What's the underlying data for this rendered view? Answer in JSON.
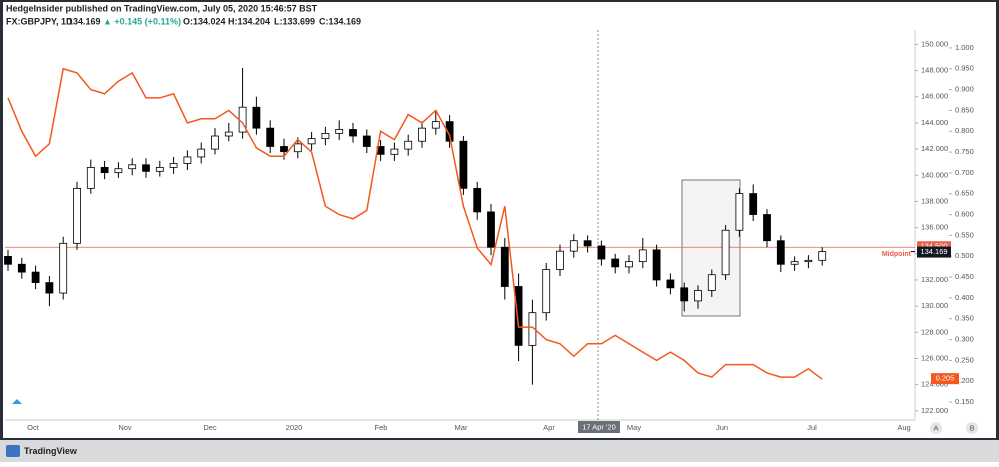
{
  "header": {
    "publisher": "HedgeInsider published on TradingView.com, July 05, 2020 15:46:57 BST",
    "symbol": "FX:GBPJPY, 1D",
    "price": "134.169",
    "change": "▲ +0.145 (+0.11%)",
    "open": "O:134.024",
    "high": "H:134.204",
    "low": "L:133.699",
    "close": "C:134.169"
  },
  "footer": {
    "brand": "TradingView",
    "crosshair_date": "17 Apr '20",
    "scale_buttons": [
      "A",
      "B"
    ]
  },
  "chart_data": {
    "type": "candlestick",
    "x_labels": [
      "Oct",
      "Nov",
      "Dec",
      "2020",
      "Feb",
      "Mar",
      "Apr",
      "May",
      "Jun",
      "Jul",
      "Aug"
    ],
    "open": [
      133.8,
      133.2,
      132.6,
      131.8,
      131.0,
      134.8,
      139.0,
      140.6,
      140.2,
      140.5,
      140.8,
      140.3,
      140.6,
      140.9,
      141.4,
      142.0,
      143.0,
      143.3,
      145.2,
      143.6,
      142.2,
      141.8,
      142.4,
      142.8,
      143.2,
      143.5,
      143.0,
      142.2,
      141.6,
      142.0,
      142.6,
      143.6,
      144.1,
      142.6,
      139.0,
      137.2,
      134.5,
      131.5,
      127.0,
      129.5,
      132.8,
      134.2,
      135.0,
      134.6,
      133.6,
      133.0,
      133.4,
      134.3,
      132.0,
      131.4,
      130.4,
      131.2,
      132.4,
      135.8,
      138.6,
      137.0,
      135.0,
      133.2,
      133.4,
      133.5
    ],
    "high": [
      134.3,
      133.7,
      133.1,
      132.3,
      135.3,
      139.5,
      141.2,
      141.1,
      141.0,
      141.3,
      141.3,
      141.1,
      141.4,
      141.9,
      142.5,
      143.6,
      144.0,
      148.2,
      146.0,
      144.2,
      142.8,
      142.9,
      143.3,
      143.7,
      144.2,
      144.0,
      143.5,
      142.7,
      142.5,
      143.1,
      144.1,
      144.9,
      144.6,
      143.0,
      139.5,
      137.8,
      135.2,
      132.5,
      130.5,
      133.3,
      134.7,
      135.5,
      135.4,
      135.0,
      134.0,
      133.9,
      135.2,
      134.7,
      132.5,
      131.8,
      131.6,
      132.8,
      136.2,
      139.0,
      139.3,
      137.4,
      135.4,
      133.8,
      133.9,
      134.5
    ],
    "low": [
      132.7,
      132.1,
      131.3,
      130.0,
      130.5,
      134.3,
      138.6,
      139.7,
      139.8,
      140.0,
      139.8,
      139.9,
      140.1,
      140.4,
      140.9,
      141.6,
      142.6,
      142.8,
      143.1,
      141.7,
      141.2,
      141.3,
      141.9,
      142.3,
      142.7,
      142.5,
      141.7,
      141.1,
      141.1,
      141.5,
      142.1,
      143.1,
      142.1,
      138.5,
      136.6,
      133.9,
      130.5,
      125.8,
      124.0,
      128.9,
      132.3,
      133.7,
      134.1,
      133.1,
      132.5,
      132.5,
      132.9,
      131.5,
      130.9,
      129.6,
      129.8,
      130.7,
      132.0,
      135.3,
      136.5,
      134.5,
      132.6,
      132.7,
      132.9,
      133.1
    ],
    "close": [
      133.2,
      132.6,
      131.8,
      131.0,
      134.8,
      139.0,
      140.6,
      140.2,
      140.5,
      140.8,
      140.3,
      140.6,
      140.9,
      141.4,
      142.0,
      143.0,
      143.3,
      145.2,
      143.6,
      142.2,
      141.8,
      142.4,
      142.8,
      143.2,
      143.5,
      143.0,
      142.2,
      141.6,
      142.0,
      142.6,
      143.6,
      144.1,
      142.6,
      139.0,
      137.2,
      134.5,
      131.5,
      127.0,
      129.5,
      132.8,
      134.2,
      135.0,
      134.6,
      133.6,
      133.0,
      133.4,
      134.3,
      132.0,
      131.4,
      130.4,
      131.2,
      132.4,
      135.8,
      138.6,
      137.0,
      135.0,
      133.2,
      133.4,
      133.5,
      134.17
    ],
    "line": {
      "color": "#f4581d",
      "axis": "y2",
      "values": [
        0.88,
        0.8,
        0.74,
        0.77,
        0.95,
        0.94,
        0.9,
        0.89,
        0.92,
        0.94,
        0.88,
        0.88,
        0.89,
        0.82,
        0.83,
        0.83,
        0.85,
        0.82,
        0.76,
        0.74,
        0.74,
        0.78,
        0.75,
        0.62,
        0.6,
        0.59,
        0.61,
        0.8,
        0.78,
        0.84,
        0.82,
        0.85,
        0.79,
        0.62,
        0.52,
        0.48,
        0.62,
        0.33,
        0.33,
        0.3,
        0.29,
        0.26,
        0.29,
        0.29,
        0.31,
        0.29,
        0.27,
        0.25,
        0.27,
        0.25,
        0.22,
        0.21,
        0.24,
        0.24,
        0.24,
        0.22,
        0.21,
        0.21,
        0.23,
        0.205
      ],
      "last_label": "0.205"
    },
    "midpoint": {
      "name": "Midpoint",
      "value": 134.5,
      "label": "134.500",
      "color": "#e8614a"
    },
    "last_price": {
      "value": 134.169,
      "label": "134.169"
    },
    "ylim": [
      121.3,
      151.1
    ],
    "yticks": [
      {
        "value": 150,
        "label": "150.000"
      },
      {
        "value": 148,
        "label": "148.000"
      },
      {
        "value": 146,
        "label": "146.000"
      },
      {
        "value": 144,
        "label": "144.000"
      },
      {
        "value": 142,
        "label": "142.000"
      },
      {
        "value": 140,
        "label": "140.000"
      },
      {
        "value": 138,
        "label": "138.000"
      },
      {
        "value": 136,
        "label": "136.000"
      },
      {
        "value": 134,
        "label": "134.000"
      },
      {
        "value": 132,
        "label": "132.000"
      },
      {
        "value": 130,
        "label": "130.000"
      },
      {
        "value": 128,
        "label": "128.000"
      },
      {
        "value": 126,
        "label": "126.000"
      },
      {
        "value": 124,
        "label": "124.000"
      },
      {
        "value": 122,
        "label": "122.000"
      }
    ],
    "y2lim": [
      0.107,
      1.043
    ],
    "y2ticks": [
      {
        "value": 1,
        "label": "1.000"
      },
      {
        "value": 0.95,
        "label": "0.950"
      },
      {
        "value": 0.9,
        "label": "0.900"
      },
      {
        "value": 0.85,
        "label": "0.850"
      },
      {
        "value": 0.8,
        "label": "0.800"
      },
      {
        "value": 0.75,
        "label": "0.750"
      },
      {
        "value": 0.7,
        "label": "0.700"
      },
      {
        "value": 0.65,
        "label": "0.650"
      },
      {
        "value": 0.6,
        "label": "0.600"
      },
      {
        "value": 0.55,
        "label": "0.550"
      },
      {
        "value": 0.5,
        "label": "0.500"
      },
      {
        "value": 0.45,
        "label": "0.450"
      },
      {
        "value": 0.4,
        "label": "0.400"
      },
      {
        "value": 0.35,
        "label": "0.350"
      },
      {
        "value": 0.3,
        "label": "0.300"
      },
      {
        "value": 0.25,
        "label": "0.250"
      },
      {
        "value": 0.2,
        "label": "0.200"
      },
      {
        "value": 0.15,
        "label": "0.150"
      }
    ]
  }
}
